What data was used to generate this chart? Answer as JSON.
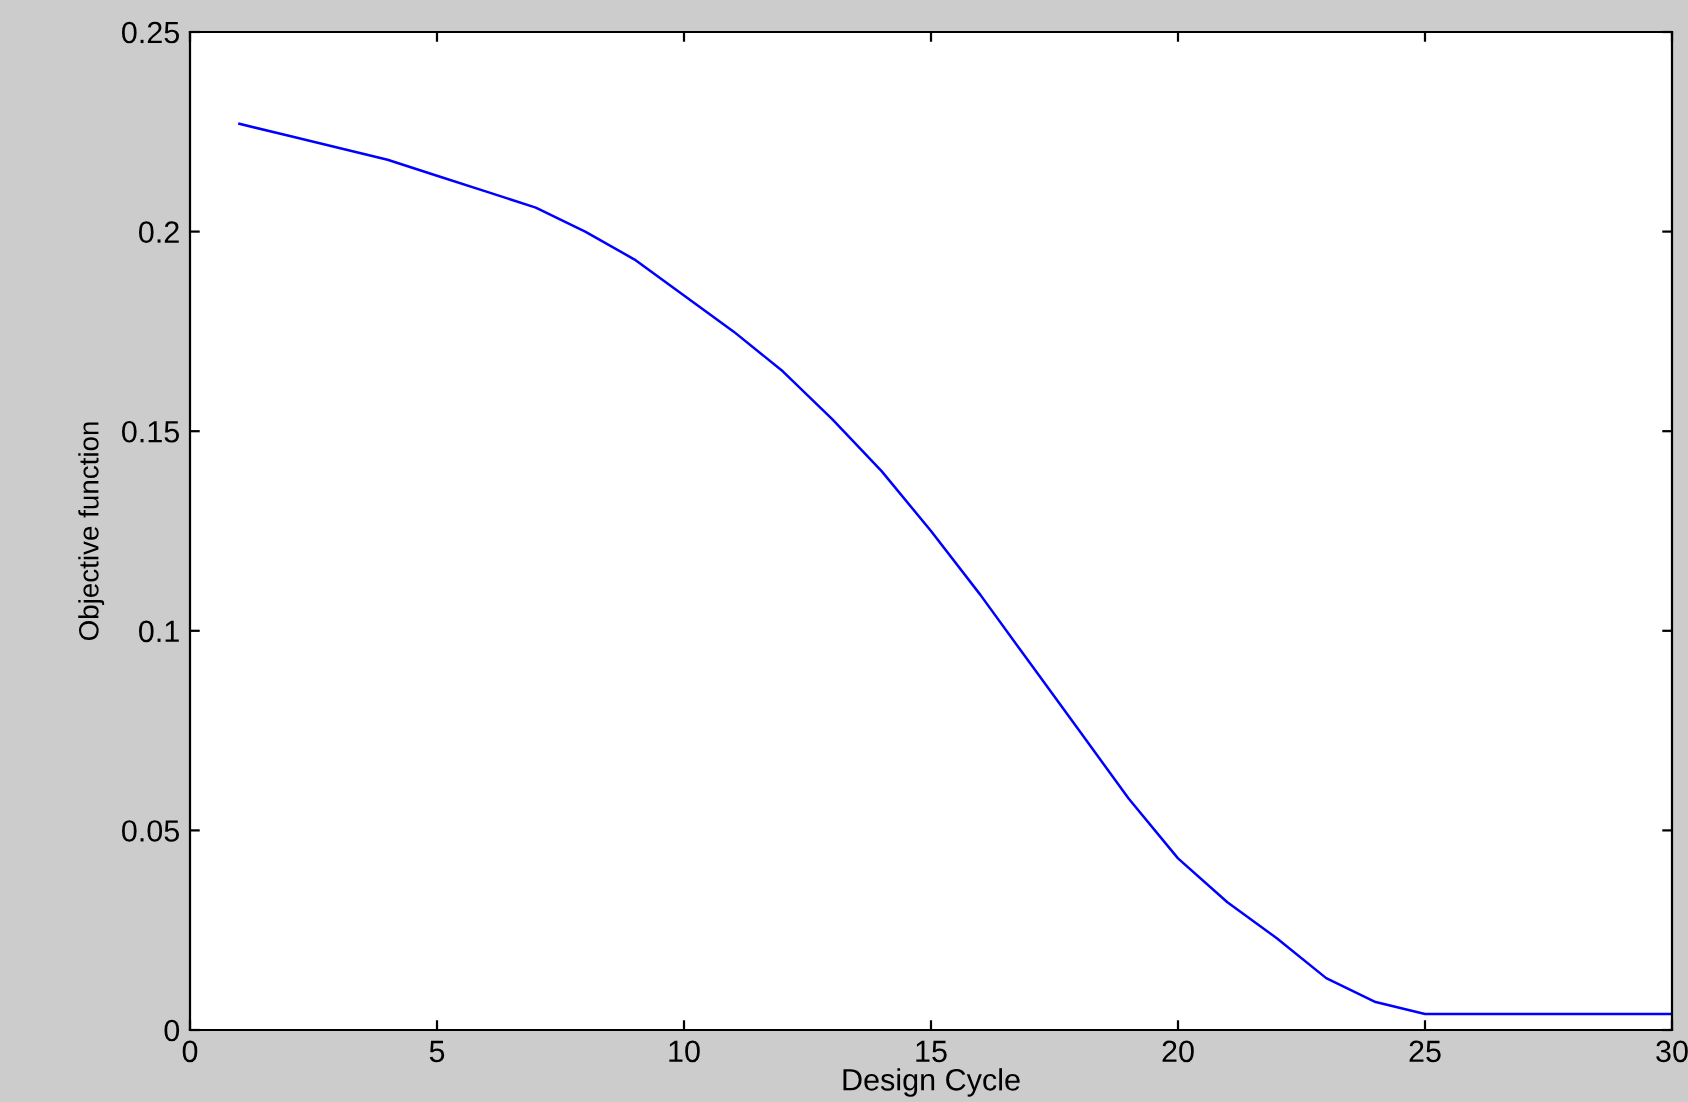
{
  "chart_data": {
    "type": "line",
    "xlabel": "Design Cycle",
    "ylabel": "Objective function",
    "x": [
      1,
      2,
      3,
      4,
      5,
      6,
      7,
      8,
      9,
      10,
      11,
      12,
      13,
      14,
      15,
      16,
      17,
      18,
      19,
      20,
      21,
      22,
      23,
      24,
      25,
      26,
      27,
      28,
      29,
      30
    ],
    "series": [
      {
        "color": "#0000ff",
        "values": [
          0.227,
          0.224,
          0.221,
          0.218,
          0.214,
          0.21,
          0.206,
          0.2,
          0.193,
          0.184,
          0.175,
          0.165,
          0.153,
          0.14,
          0.125,
          0.109,
          0.092,
          0.075,
          0.058,
          0.043,
          0.032,
          0.023,
          0.013,
          0.007,
          0.004,
          0.004,
          0.004,
          0.004,
          0.004,
          0.004
        ]
      }
    ],
    "xlim": [
      0,
      30
    ],
    "xticks": [
      0,
      5,
      10,
      15,
      20,
      25,
      30
    ],
    "ylim": [
      0,
      0.25
    ],
    "yticks": [
      0,
      0.05,
      0.1,
      0.15,
      0.2,
      0.25
    ],
    "grid": false,
    "legend": false,
    "marker": "none",
    "line_style": "solid"
  }
}
